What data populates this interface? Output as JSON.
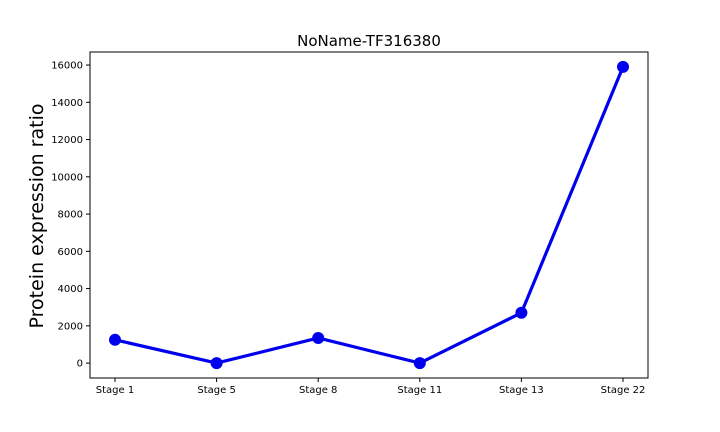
{
  "chart_data": {
    "type": "line",
    "title": "NoName-TF316380",
    "xlabel": "",
    "ylabel": "Protein expression ratio",
    "categories": [
      "Stage 1",
      "Stage 5",
      "Stage 8",
      "Stage 11",
      "Stage 13",
      "Stage 22"
    ],
    "series": [
      {
        "values": [
          1250,
          0,
          1350,
          0,
          2700,
          15900
        ]
      }
    ],
    "yticks": [
      0,
      2000,
      4000,
      6000,
      8000,
      10000,
      12000,
      14000,
      16000
    ],
    "ylim": [
      -800,
      16700
    ],
    "grid": false,
    "color": "#0000ee"
  }
}
